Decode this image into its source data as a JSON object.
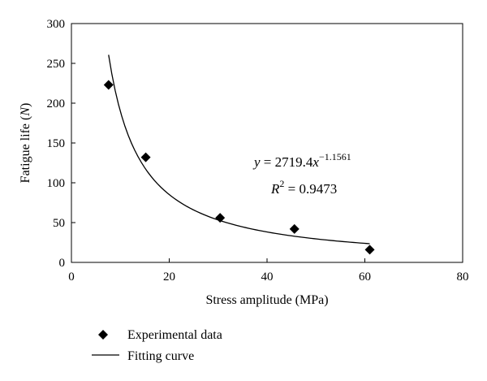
{
  "chart_data": {
    "type": "scatter",
    "xlabel": "Stress amplitude (MPa)",
    "ylabel_parts": {
      "main": "Fatigue life (",
      "var": "N",
      "end": ")"
    },
    "xlim": [
      0,
      80
    ],
    "ylim": [
      0,
      300
    ],
    "xticks": [
      0,
      20,
      40,
      60,
      80
    ],
    "yticks": [
      0,
      50,
      100,
      150,
      200,
      250,
      300
    ],
    "series": [
      {
        "name": "Experimental data",
        "marker": "diamond",
        "color": "#000000",
        "points": [
          {
            "x": 7.6,
            "y": 223
          },
          {
            "x": 15.2,
            "y": 132
          },
          {
            "x": 30.4,
            "y": 56
          },
          {
            "x": 45.6,
            "y": 42
          },
          {
            "x": 61.0,
            "y": 16
          }
        ]
      },
      {
        "name": "Fitting curve",
        "kind": "line",
        "color": "#000000",
        "fit": {
          "a": 2719.4,
          "b": -1.1561,
          "x_from": 7.6,
          "x_to": 61.0
        }
      }
    ],
    "annotations": {
      "equation": {
        "lhs": "y",
        "eq": " = 2719.4",
        "var": "x",
        "exp": "−1.1561"
      },
      "r2": {
        "lhs": "R",
        "sup": "2",
        "rest": " = 0.9473"
      }
    },
    "legend": {
      "placement": "bottom-left"
    },
    "grid": false
  }
}
